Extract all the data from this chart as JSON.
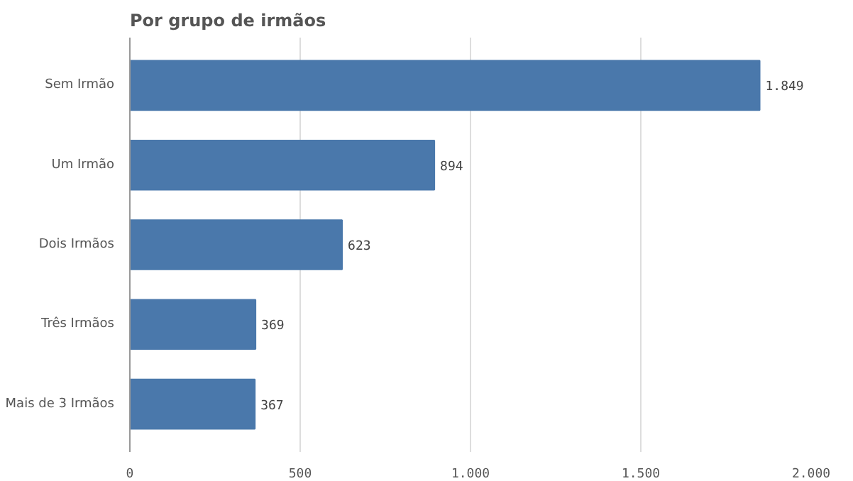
{
  "chart_data": {
    "type": "bar",
    "orientation": "horizontal",
    "title": "Por grupo de irmãos",
    "categories": [
      "Sem Irmão",
      "Um Irmão",
      "Dois Irmãos",
      "Três Irmãos",
      "Mais de 3 Irmãos"
    ],
    "values": [
      1849,
      894,
      623,
      369,
      367
    ],
    "value_labels": [
      "1.849",
      "894",
      "623",
      "369",
      "367"
    ],
    "color": "#4a78ab",
    "xlim": [
      0,
      2000
    ],
    "xticks": [
      0,
      500,
      {
        "value": 1000,
        "label": "1.000"
      },
      {
        "value": 1500,
        "label": "1.500"
      },
      {
        "value": 2000,
        "label": "2.000"
      }
    ],
    "grid": "x"
  }
}
